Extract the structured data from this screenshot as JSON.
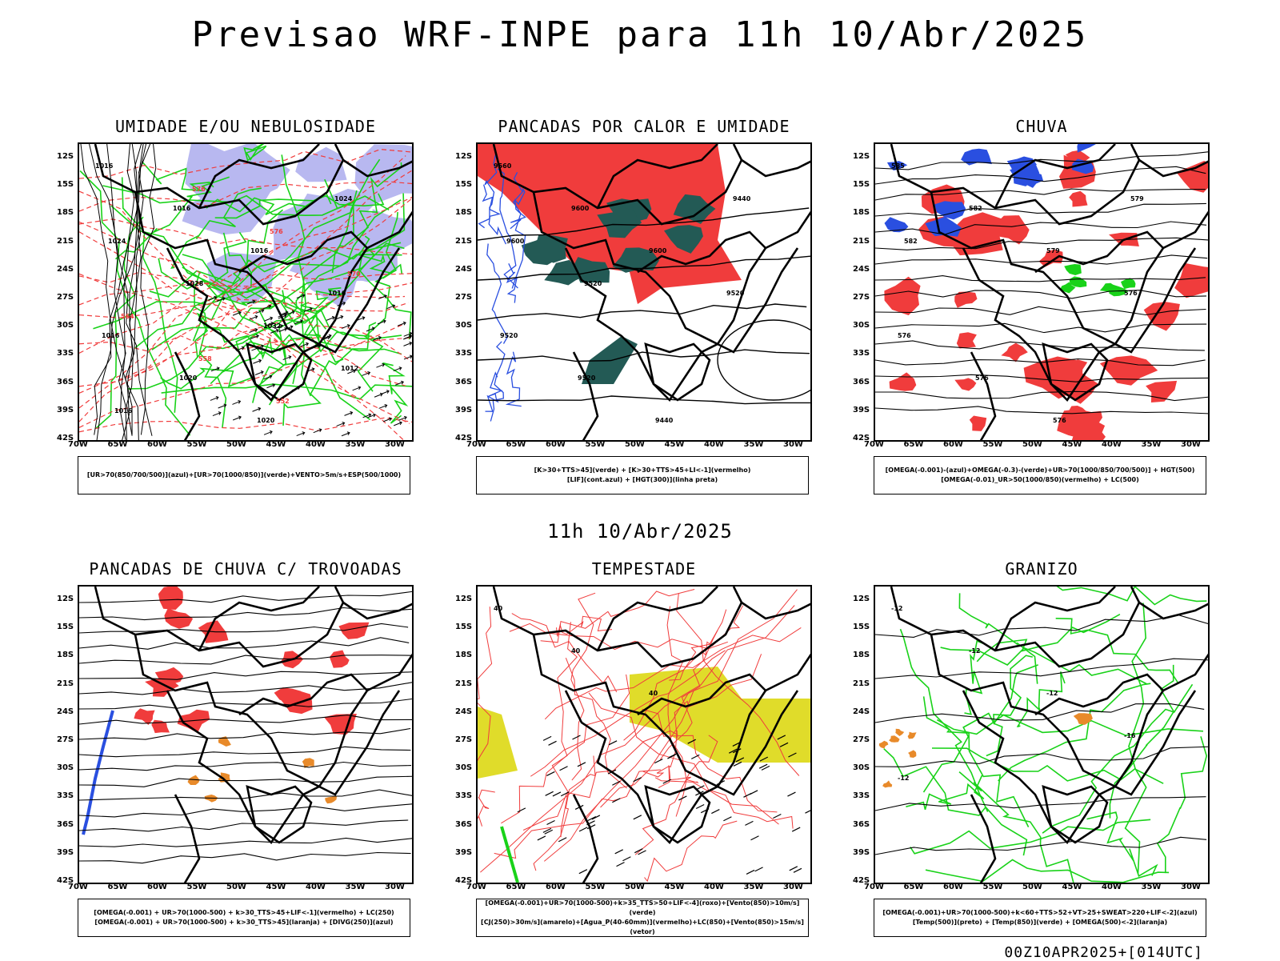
{
  "main_title": "Previsao WRF-INPE  para 11h 10/Abr/2025",
  "mid_title": "11h 10/Abr/2025",
  "footer": "00Z10APR2025+[014UTC]",
  "lat_ticks": [
    "12S",
    "15S",
    "18S",
    "21S",
    "24S",
    "27S",
    "30S",
    "33S",
    "36S",
    "39S",
    "42S"
  ],
  "lon_ticks": [
    "70W",
    "65W",
    "60W",
    "55W",
    "50W",
    "45W",
    "40W",
    "35W",
    "30W"
  ],
  "colors": {
    "red": "#f03c3c",
    "blue": "#2a4fe0",
    "green": "#19d219",
    "lavender": "#b8b8f0",
    "darkteal": "#235a55",
    "yellow": "#e0dc2a",
    "orange": "#e88a2a"
  },
  "panels": [
    {
      "title": "UMIDADE E/OU NEBULOSIDADE",
      "legend": [
        "[UR>70(850/700/500)](azul)+[UR>70(1000/850)](verde)+VENTO>5m/s+ESP(500/1000)"
      ],
      "labels": [
        "1016",
        "1016",
        "1016",
        "1016",
        "1016",
        "1020",
        "1020",
        "1024",
        "1024",
        "1028",
        "1032",
        "1012",
        "1016",
        "576",
        "576",
        "570",
        "564",
        "558",
        "552"
      ]
    },
    {
      "title": "PANCADAS POR CALOR E UMIDADE",
      "legend": [
        "[K>30+TTS>45](verde) + [K>30+TTS>45+LI<-1](vermelho)",
        "[LIF](cont.azul) + [HGT(300)](linha preta)"
      ],
      "labels": [
        "9560",
        "9600",
        "9600",
        "9520",
        "9520",
        "9520",
        "9440",
        "9440",
        "9600",
        "9520"
      ]
    },
    {
      "title": "CHUVA",
      "legend": [
        "[OMEGA(-0.001)-(azul)+OMEGA(-0.3)-(verde)+UR>70(1000/850/700/500)] + HGT(500)",
        "[OMEGA(-0.01)_UR>50(1000/850)(vermelho) + LC(500)"
      ],
      "labels": [
        "585",
        "582",
        "579",
        "576",
        "576",
        "576",
        "576",
        "579",
        "582"
      ]
    },
    {
      "title": "PANCADAS DE CHUVA C/ TROVOADAS",
      "legend": [
        "[OMEGA(-0.001) + UR>70(1000-500) + k>30_TTS>45+LIF<-1](vermelho) + LC(250)",
        "[OMEGA(-0.001) + UR>70(1000-500) + k>30_TTS>45](laranja) + [DIVG(250)](azul)"
      ],
      "labels": []
    },
    {
      "title": "TEMPESTADE",
      "legend": [
        "[OMEGA(-0.001)+UR>70(1000-500)+k>35_TTS>50+LIF<-4](roxo)+[Vento(850)>10m/s](verde)",
        "[CJ(250)>30m/s](amarelo)+[Agua_P(40-60mm)](vermelho)+LC(850)+[Vento(850)>15m/s](vetor)"
      ],
      "labels": [
        "40",
        "40",
        "40"
      ]
    },
    {
      "title": "GRANIZO",
      "legend": [
        "[OMEGA(-0.001)+UR>70(1000-500)+k<60+TTS>52+VT>25+SWEAT>220+LIF<-2](azul)",
        "[Temp(500)](preto) + [Temp(850)](verde) + [OMEGA(500)<-2](laranja)"
      ],
      "labels": [
        "-12",
        "-12",
        "-12",
        "-16",
        "-12"
      ]
    }
  ]
}
